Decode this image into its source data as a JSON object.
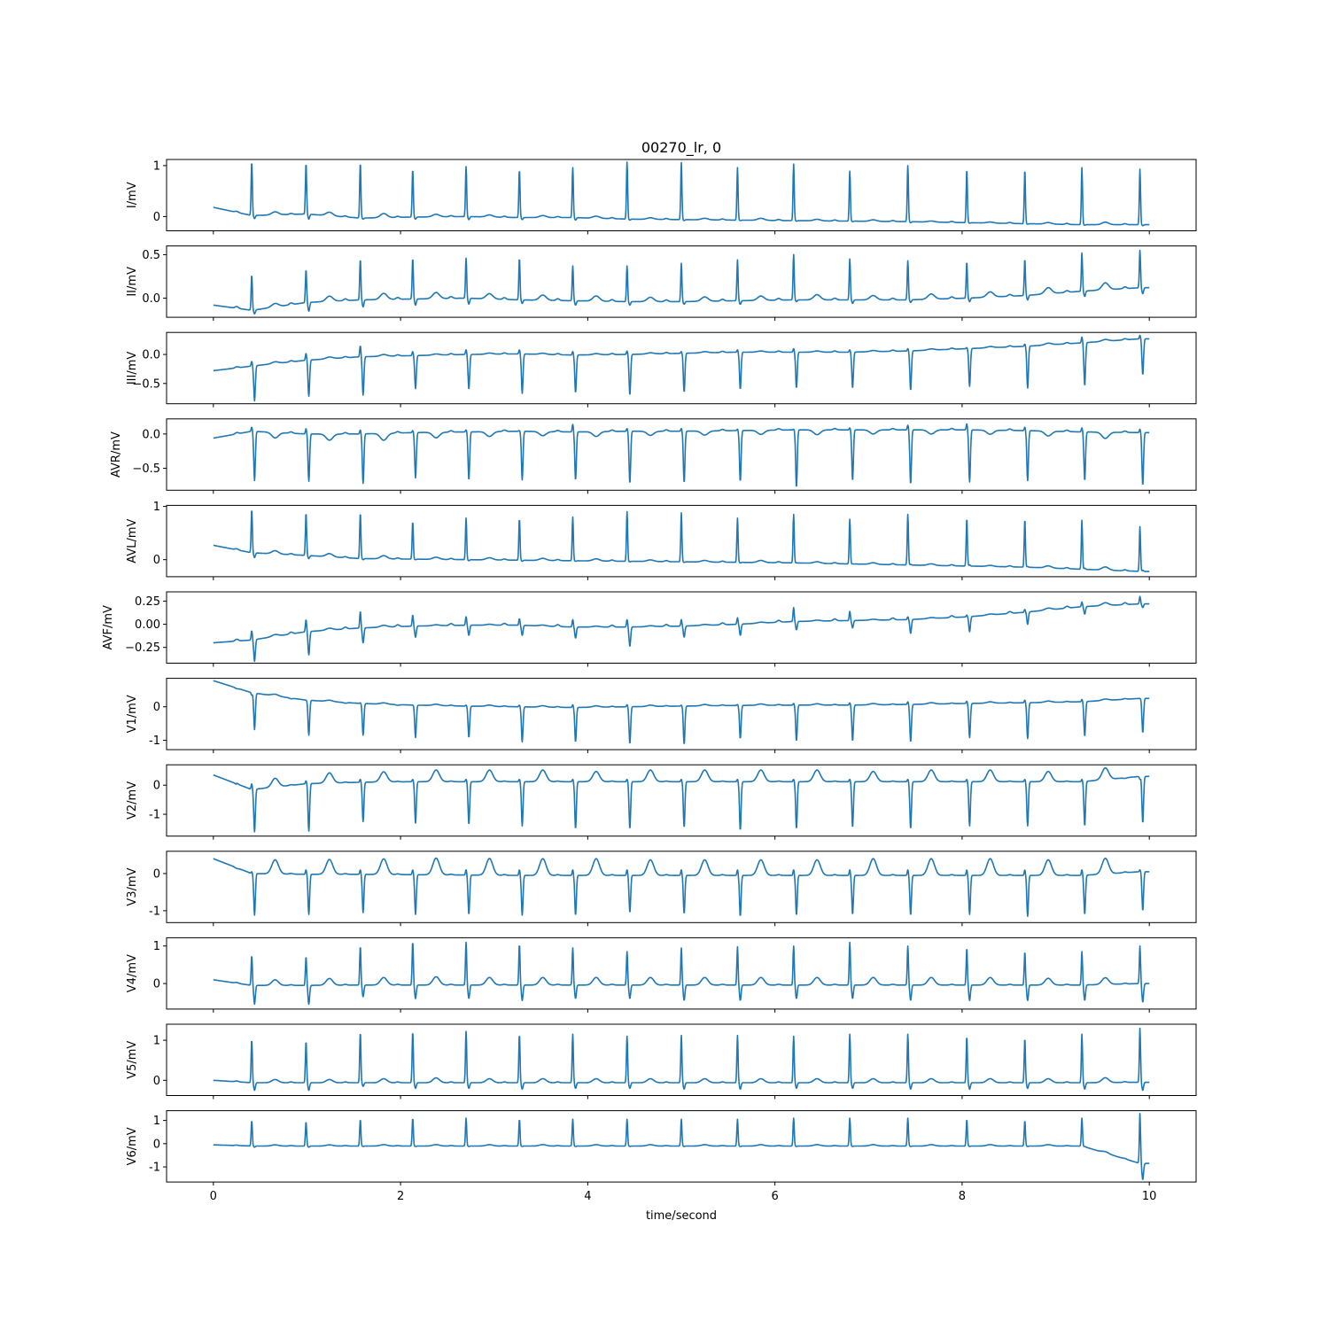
{
  "chart_data": {
    "type": "line",
    "title": "00270_lr,  0",
    "xlabel": "time/second",
    "x_ticks": [
      0,
      2,
      4,
      6,
      8,
      10
    ],
    "xlim": [
      -0.5,
      10.5
    ],
    "duration_s": 10,
    "grid": false,
    "line_color": "#1f77b4",
    "beat_times_s": [
      0.41,
      0.99,
      1.57,
      2.13,
      2.7,
      3.27,
      3.84,
      4.42,
      5.0,
      5.6,
      6.2,
      6.8,
      7.42,
      8.05,
      8.67,
      9.28,
      9.9
    ],
    "leads": [
      {
        "ylabel": "I/mV",
        "ylim": [
          -0.28,
          1.12
        ],
        "yticks": [
          0,
          1
        ],
        "r": [
          1.08,
          1.05,
          1.06,
          0.93,
          0.98,
          0.92,
          0.96,
          1.07,
          1.06,
          0.96,
          1.03,
          0.89,
          1.0,
          0.93,
          0.92,
          0.96,
          0.93
        ],
        "s": [
          -0.04,
          -0.05,
          -0.05,
          -0.05,
          -0.06,
          -0.06,
          -0.07,
          -0.07,
          -0.08,
          -0.08,
          -0.09,
          -0.1,
          -0.12,
          -0.13,
          -0.15,
          -0.17,
          -0.18
        ],
        "t": [
          0.06,
          0.07,
          0.08,
          0.05,
          0.04,
          0.04,
          0.04,
          0.03,
          0.03,
          0.04,
          0.03,
          0.03,
          0.02,
          0.02,
          0.03,
          0.05,
          0.02
        ],
        "baseline": [
          0.18,
          0.02,
          0.05,
          -0.03,
          -0.01,
          0.0,
          -0.02,
          -0.02,
          -0.05,
          -0.06,
          -0.07,
          -0.08,
          -0.09,
          -0.1,
          -0.12,
          -0.14,
          -0.16,
          -0.16
        ]
      },
      {
        "ylabel": "II/mV",
        "ylim": [
          -0.22,
          0.6
        ],
        "yticks": [
          -0.0,
          0.5
        ],
        "r": [
          0.27,
          0.33,
          0.45,
          0.46,
          0.46,
          0.46,
          0.37,
          0.37,
          0.4,
          0.44,
          0.5,
          0.45,
          0.43,
          0.42,
          0.45,
          0.52,
          0.55
        ],
        "s": [
          -0.18,
          -0.15,
          -0.1,
          -0.08,
          -0.07,
          -0.06,
          -0.08,
          -0.08,
          -0.07,
          -0.07,
          -0.04,
          -0.06,
          -0.05,
          -0.04,
          -0.02,
          0.02,
          0.05
        ],
        "t": [
          0.04,
          0.06,
          0.07,
          0.07,
          0.06,
          0.06,
          0.06,
          0.05,
          0.05,
          0.05,
          0.06,
          0.05,
          0.06,
          0.06,
          0.07,
          0.08,
          0.07
        ],
        "baseline": [
          -0.08,
          -0.14,
          -0.05,
          -0.02,
          -0.01,
          0.0,
          -0.02,
          -0.03,
          -0.04,
          -0.04,
          -0.03,
          -0.02,
          -0.02,
          -0.02,
          0.0,
          0.03,
          0.08,
          0.12
        ]
      },
      {
        "ylabel": "III/mV",
        "ylim": [
          -0.85,
          0.38
        ],
        "yticks": [
          -0.5,
          0.0
        ],
        "r": [
          -0.12,
          0.02,
          0.15,
          0.05,
          0.08,
          0.08,
          0.05,
          0.06,
          0.05,
          0.08,
          0.1,
          0.08,
          0.1,
          0.12,
          0.18,
          0.3,
          0.33
        ],
        "s": [
          -0.8,
          -0.72,
          -0.7,
          -0.59,
          -0.6,
          -0.67,
          -0.66,
          -0.7,
          -0.65,
          -0.6,
          -0.58,
          -0.58,
          -0.62,
          -0.55,
          -0.58,
          -0.54,
          -0.35
        ],
        "t": [
          0.03,
          0.03,
          0.03,
          0.02,
          0.02,
          0.02,
          0.02,
          0.02,
          0.02,
          0.02,
          0.02,
          0.02,
          0.02,
          0.02,
          0.03,
          0.03,
          0.02
        ],
        "baseline": [
          -0.28,
          -0.2,
          -0.1,
          -0.04,
          -0.02,
          0.0,
          0.01,
          -0.01,
          0.0,
          0.02,
          0.04,
          0.04,
          0.04,
          0.06,
          0.1,
          0.14,
          0.2,
          0.27
        ]
      },
      {
        "ylabel": "AVR/mV",
        "ylim": [
          -0.82,
          0.22
        ],
        "yticks": [
          -0.5,
          0.0
        ],
        "r": [
          0.1,
          0.08,
          0.06,
          0.05,
          0.06,
          0.05,
          0.14,
          0.08,
          0.08,
          0.07,
          0.07,
          0.09,
          0.13,
          0.15,
          0.1,
          0.09,
          0.07
        ],
        "s": [
          -0.68,
          -0.69,
          -0.72,
          -0.64,
          -0.67,
          -0.67,
          -0.67,
          -0.72,
          -0.71,
          -0.69,
          -0.78,
          -0.68,
          -0.73,
          -0.7,
          -0.68,
          -0.68,
          -0.75
        ],
        "t": [
          -0.08,
          -0.09,
          -0.1,
          -0.08,
          -0.07,
          -0.06,
          -0.07,
          -0.06,
          -0.06,
          -0.06,
          -0.07,
          -0.06,
          -0.06,
          -0.06,
          -0.07,
          -0.09,
          -0.08
        ],
        "baseline": [
          -0.06,
          0.04,
          0.0,
          0.0,
          0.02,
          0.03,
          0.04,
          0.03,
          0.04,
          0.04,
          0.05,
          0.06,
          0.06,
          0.06,
          0.06,
          0.05,
          0.03,
          0.02
        ]
      },
      {
        "ylabel": "AVL/mV",
        "ylim": [
          -0.32,
          1.02
        ],
        "yticks": [
          0,
          1
        ],
        "r": [
          0.95,
          0.88,
          0.88,
          0.72,
          0.78,
          0.77,
          0.8,
          0.9,
          0.88,
          0.78,
          0.85,
          0.76,
          0.85,
          0.78,
          0.76,
          0.74,
          0.62
        ],
        "s": [
          0.04,
          0.02,
          0.0,
          0.0,
          -0.02,
          -0.03,
          -0.03,
          -0.04,
          -0.05,
          -0.06,
          -0.06,
          -0.08,
          -0.09,
          -0.1,
          -0.13,
          -0.16,
          -0.2
        ],
        "t": [
          0.06,
          0.06,
          0.06,
          0.04,
          0.04,
          0.04,
          0.04,
          0.03,
          0.03,
          0.04,
          0.03,
          0.03,
          0.03,
          0.02,
          0.04,
          0.06,
          0.02
        ],
        "baseline": [
          0.27,
          0.13,
          0.08,
          0.02,
          0.01,
          0.0,
          -0.01,
          -0.02,
          -0.03,
          -0.04,
          -0.05,
          -0.06,
          -0.08,
          -0.1,
          -0.12,
          -0.14,
          -0.18,
          -0.22
        ]
      },
      {
        "ylabel": "AVF/mV",
        "ylim": [
          -0.42,
          0.35
        ],
        "yticks": [
          -0.25,
          0.0,
          0.25
        ],
        "r": [
          -0.07,
          0.05,
          0.14,
          0.1,
          0.08,
          0.06,
          0.05,
          0.05,
          0.05,
          0.07,
          0.18,
          0.14,
          0.08,
          0.1,
          0.16,
          0.24,
          0.3
        ],
        "s": [
          -0.4,
          -0.33,
          -0.2,
          -0.14,
          -0.12,
          -0.12,
          -0.15,
          -0.24,
          -0.14,
          -0.12,
          -0.06,
          -0.04,
          -0.1,
          -0.08,
          0.0,
          0.11,
          0.18
        ],
        "t": [
          0.02,
          0.02,
          0.02,
          0.01,
          0.01,
          0.01,
          0.01,
          0.01,
          0.01,
          0.01,
          0.01,
          0.01,
          0.01,
          0.01,
          0.02,
          0.03,
          0.02
        ],
        "baseline": [
          -0.2,
          -0.17,
          -0.08,
          -0.04,
          -0.02,
          -0.01,
          -0.01,
          -0.03,
          -0.03,
          -0.02,
          0.0,
          0.03,
          0.04,
          0.05,
          0.08,
          0.13,
          0.19,
          0.22
        ]
      },
      {
        "ylabel": "V1/mV",
        "ylim": [
          -1.28,
          0.85
        ],
        "yticks": [
          -1,
          0
        ],
        "r": [
          0.35,
          0.2,
          0.12,
          0.05,
          0.05,
          0.05,
          0.06,
          0.06,
          0.05,
          0.07,
          0.1,
          0.12,
          0.15,
          0.17,
          0.2,
          0.22,
          0.25
        ],
        "s": [
          -0.68,
          -0.85,
          -0.85,
          -0.92,
          -0.92,
          -1.05,
          -1.05,
          -1.1,
          -1.12,
          -0.95,
          -1.02,
          -1.02,
          -1.05,
          -0.92,
          -0.95,
          -0.88,
          -0.78
        ],
        "t": [
          0.05,
          0.04,
          0.04,
          0.04,
          0.04,
          0.04,
          0.04,
          0.04,
          0.04,
          0.04,
          0.04,
          0.04,
          0.04,
          0.04,
          0.04,
          0.04,
          0.04
        ],
        "baseline": [
          0.78,
          0.42,
          0.2,
          0.1,
          0.05,
          0.02,
          0.0,
          -0.02,
          0.0,
          0.02,
          0.04,
          0.05,
          0.05,
          0.07,
          0.1,
          0.12,
          0.15,
          0.25
        ]
      },
      {
        "ylabel": "V2/mV",
        "ylim": [
          -1.75,
          0.7
        ],
        "yticks": [
          -1,
          0
        ],
        "r": [
          0.05,
          0.15,
          0.2,
          0.2,
          0.2,
          0.2,
          0.2,
          0.2,
          0.2,
          0.2,
          0.2,
          0.2,
          0.2,
          0.2,
          0.2,
          0.2,
          0.2
        ],
        "s": [
          -1.6,
          -1.58,
          -1.25,
          -1.3,
          -1.35,
          -1.4,
          -1.5,
          -1.5,
          -1.45,
          -1.55,
          -1.5,
          -1.45,
          -1.5,
          -1.4,
          -1.4,
          -1.4,
          -1.3
        ],
        "t": [
          0.3,
          0.35,
          0.35,
          0.4,
          0.4,
          0.4,
          0.35,
          0.4,
          0.4,
          0.4,
          0.4,
          0.35,
          0.4,
          0.4,
          0.35,
          0.4,
          0.4
        ],
        "baseline": [
          0.35,
          -0.15,
          0.05,
          0.1,
          0.12,
          0.12,
          0.12,
          0.12,
          0.12,
          0.12,
          0.12,
          0.12,
          0.12,
          0.12,
          0.12,
          0.12,
          0.12,
          0.3
        ]
      },
      {
        "ylabel": "V3/mV",
        "ylim": [
          -1.32,
          0.6
        ],
        "yticks": [
          -1,
          0
        ],
        "r": [
          0.05,
          0.1,
          0.1,
          0.1,
          0.1,
          0.1,
          0.1,
          0.1,
          0.1,
          0.1,
          0.1,
          0.1,
          0.1,
          0.1,
          0.1,
          0.1,
          0.1
        ],
        "s": [
          -1.12,
          -1.1,
          -1.05,
          -1.1,
          -1.1,
          -1.12,
          -1.12,
          -1.05,
          -1.08,
          -1.15,
          -1.12,
          -1.1,
          -1.12,
          -1.1,
          -1.15,
          -1.1,
          -1.0
        ],
        "t": [
          0.38,
          0.4,
          0.42,
          0.45,
          0.45,
          0.45,
          0.45,
          0.42,
          0.42,
          0.42,
          0.42,
          0.45,
          0.45,
          0.45,
          0.42,
          0.42,
          0.42
        ],
        "baseline": [
          0.4,
          0.0,
          -0.02,
          -0.02,
          -0.03,
          -0.04,
          -0.05,
          -0.05,
          -0.05,
          -0.05,
          -0.05,
          -0.05,
          -0.05,
          -0.05,
          -0.05,
          -0.05,
          -0.05,
          0.05
        ]
      },
      {
        "ylabel": "V4/mV",
        "ylim": [
          -0.68,
          1.22
        ],
        "yticks": [
          0,
          1
        ],
        "r": [
          0.75,
          0.72,
          1.0,
          1.12,
          1.1,
          1.05,
          0.95,
          0.85,
          0.95,
          0.98,
          1.0,
          1.1,
          1.0,
          0.95,
          0.85,
          0.85,
          1.0
        ],
        "s": [
          -0.55,
          -0.55,
          -0.35,
          -0.4,
          -0.4,
          -0.45,
          -0.4,
          -0.4,
          -0.45,
          -0.45,
          -0.4,
          -0.4,
          -0.45,
          -0.45,
          -0.45,
          -0.45,
          -0.5
        ],
        "t": [
          0.15,
          0.18,
          0.2,
          0.22,
          0.2,
          0.2,
          0.2,
          0.2,
          0.2,
          0.2,
          0.2,
          0.2,
          0.2,
          0.2,
          0.18,
          0.18,
          0.2
        ],
        "baseline": [
          0.1,
          -0.05,
          -0.05,
          -0.04,
          -0.04,
          -0.04,
          -0.04,
          -0.04,
          -0.04,
          -0.04,
          -0.04,
          -0.04,
          -0.04,
          -0.04,
          -0.04,
          -0.04,
          -0.04,
          0.0
        ]
      },
      {
        "ylabel": "V5/mV",
        "ylim": [
          -0.38,
          1.4
        ],
        "yticks": [
          0,
          1
        ],
        "r": [
          1.02,
          0.98,
          1.2,
          1.22,
          1.22,
          1.15,
          1.15,
          1.1,
          1.12,
          1.12,
          1.1,
          1.15,
          1.15,
          1.1,
          1.05,
          1.15,
          1.3
        ],
        "s": [
          -0.25,
          -0.25,
          -0.15,
          -0.2,
          -0.2,
          -0.22,
          -0.2,
          -0.2,
          -0.22,
          -0.22,
          -0.2,
          -0.2,
          -0.22,
          -0.22,
          -0.2,
          -0.22,
          -0.25
        ],
        "t": [
          0.08,
          0.08,
          0.1,
          0.12,
          0.1,
          0.1,
          0.1,
          0.1,
          0.1,
          0.1,
          0.1,
          0.1,
          0.1,
          0.1,
          0.1,
          0.12,
          0.1
        ],
        "baseline": [
          0.0,
          -0.06,
          -0.06,
          -0.06,
          -0.06,
          -0.06,
          -0.06,
          -0.06,
          -0.06,
          -0.06,
          -0.06,
          -0.06,
          -0.06,
          -0.06,
          -0.06,
          -0.06,
          -0.06,
          -0.05
        ]
      },
      {
        "ylabel": "V6/mV",
        "ylim": [
          -1.65,
          1.42
        ],
        "yticks": [
          -1,
          0,
          1
        ],
        "r": [
          1.0,
          0.95,
          1.05,
          1.1,
          1.1,
          1.05,
          1.05,
          1.05,
          1.05,
          1.05,
          1.1,
          1.1,
          1.1,
          1.05,
          1.0,
          1.1,
          1.3
        ],
        "s": [
          -0.15,
          -0.15,
          -0.12,
          -0.12,
          -0.12,
          -0.12,
          -0.12,
          -0.12,
          -0.12,
          -0.12,
          -0.12,
          -0.12,
          -0.12,
          -0.12,
          -0.12,
          -0.12,
          -1.55
        ],
        "t": [
          0.05,
          0.05,
          0.06,
          0.06,
          0.06,
          0.06,
          0.06,
          0.06,
          0.06,
          0.06,
          0.06,
          0.06,
          0.06,
          0.06,
          0.06,
          0.06,
          0.05
        ],
        "baseline": [
          -0.05,
          -0.1,
          -0.1,
          -0.1,
          -0.1,
          -0.1,
          -0.1,
          -0.1,
          -0.1,
          -0.1,
          -0.1,
          -0.1,
          -0.1,
          -0.1,
          -0.1,
          -0.1,
          -0.1,
          -0.85
        ]
      }
    ]
  }
}
